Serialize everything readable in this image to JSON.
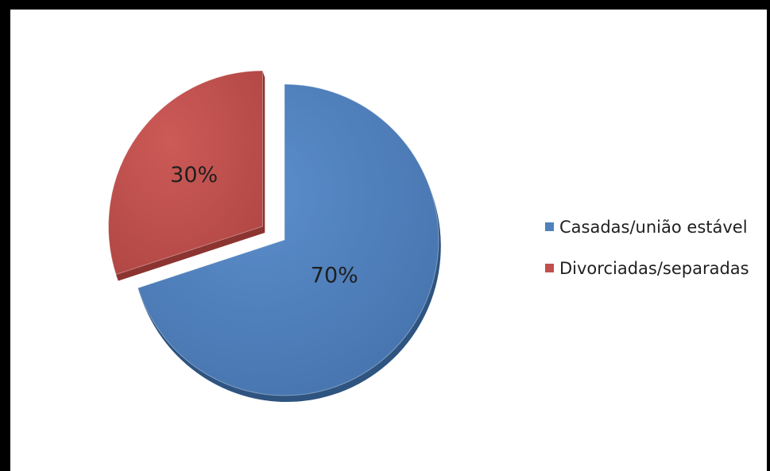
{
  "chart_data": {
    "type": "pie",
    "style": "3d-exploded",
    "legend_position": "right",
    "slices": [
      {
        "name": "Casadas/união estável",
        "value": 70,
        "label": "70%",
        "color": "#4f81bd",
        "explode": false
      },
      {
        "name": "Divorciadas/separadas",
        "value": 30,
        "label": "30%",
        "color": "#c0504d",
        "explode": true
      }
    ]
  }
}
